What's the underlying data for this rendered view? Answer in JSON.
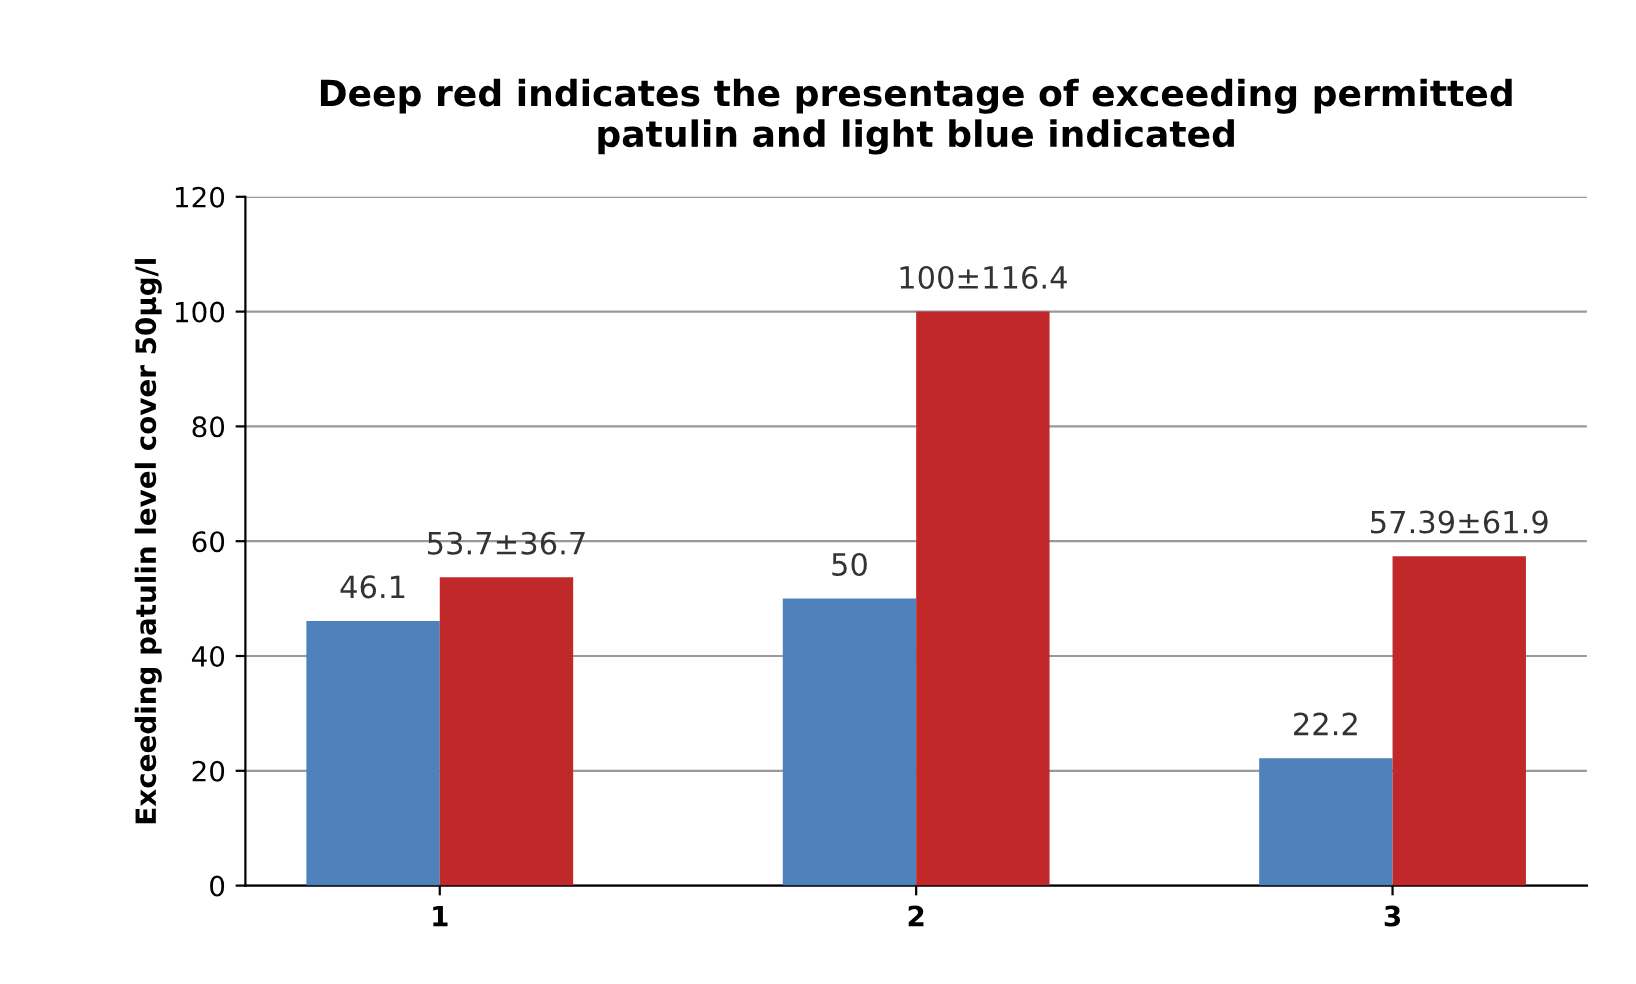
{
  "chart_data": {
    "type": "bar",
    "title": "Deep red indicates the presentage of exceeding permitted\npatulin and light blue indicated",
    "ylabel": "Exceeding patulin level cover 50μg/l",
    "categories": [
      "1",
      "2",
      "3"
    ],
    "series": [
      {
        "color": "#4f81bd",
        "values": [
          46.1,
          50,
          22.2
        ],
        "value_labels": [
          "46.1",
          "50",
          "22.2"
        ]
      },
      {
        "color": "#c0282a",
        "values": [
          53.7,
          100,
          57.39
        ],
        "value_labels": [
          "53.7±36.7",
          "100±116.4",
          "57.39±61.9"
        ]
      }
    ],
    "ylim": [
      0,
      120
    ],
    "yticks": [
      0,
      20,
      40,
      60,
      80,
      100,
      120
    ],
    "grid": "y",
    "legend": false
  }
}
